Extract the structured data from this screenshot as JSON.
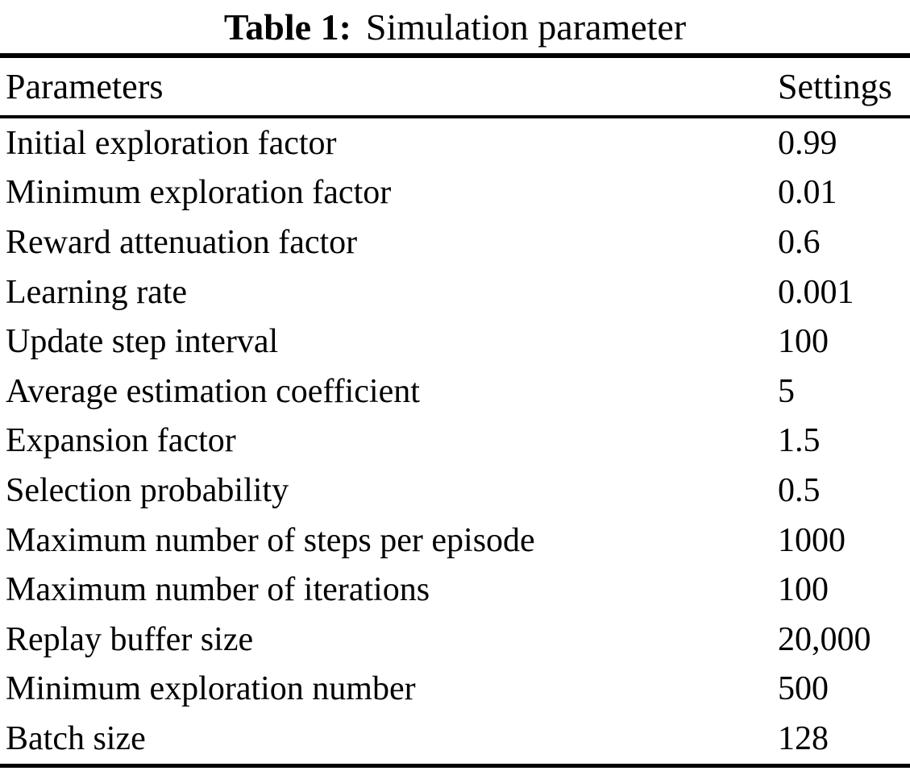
{
  "title": {
    "label": "Table 1:",
    "caption": "Simulation parameter"
  },
  "table": {
    "headers": {
      "parameter": "Parameters",
      "setting": "Settings"
    },
    "rows": [
      {
        "parameter": "Initial exploration factor",
        "setting": "0.99"
      },
      {
        "parameter": "Minimum exploration factor",
        "setting": "0.01"
      },
      {
        "parameter": "Reward attenuation factor",
        "setting": "0.6"
      },
      {
        "parameter": "Learning rate",
        "setting": "0.001"
      },
      {
        "parameter": "Update step interval",
        "setting": "100"
      },
      {
        "parameter": "Average estimation coefficient",
        "setting": "5"
      },
      {
        "parameter": "Expansion factor",
        "setting": "1.5"
      },
      {
        "parameter": "Selection probability",
        "setting": "0.5"
      },
      {
        "parameter": "Maximum number of steps per episode",
        "setting": "1000"
      },
      {
        "parameter": "Maximum number of iterations",
        "setting": "100"
      },
      {
        "parameter": "Replay buffer size",
        "setting": "20,000"
      },
      {
        "parameter": "Minimum exploration number",
        "setting": "500"
      },
      {
        "parameter": "Batch size",
        "setting": "128"
      }
    ]
  },
  "colors": {
    "text": "#000000",
    "background": "#ffffff",
    "rule": "#000000"
  }
}
